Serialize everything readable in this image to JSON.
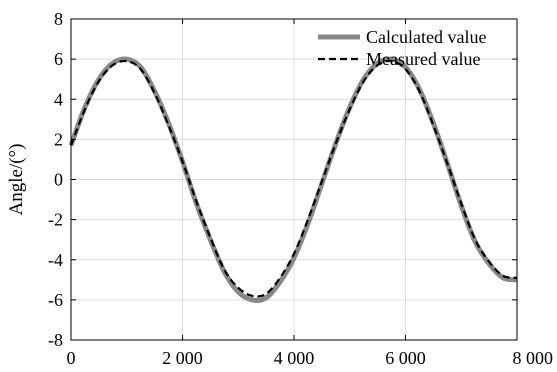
{
  "chart_data": {
    "type": "line",
    "title": "",
    "xlabel": "",
    "ylabel": "Angle/(°)",
    "xlim": [
      0,
      8000
    ],
    "ylim": [
      -8,
      8
    ],
    "x_ticks": [
      0,
      2000,
      4000,
      6000,
      8000
    ],
    "x_tick_labels": [
      "0",
      "2 000",
      "4 000",
      "6 000",
      "8 000"
    ],
    "y_ticks": [
      8,
      6,
      4,
      2,
      0,
      -2,
      -4,
      -6,
      -8
    ],
    "y_tick_labels": [
      "8",
      "6",
      "4",
      "2",
      "0",
      "-2",
      "-4",
      "-6",
      "-8"
    ],
    "grid": true,
    "legend_position": "top-right",
    "series": [
      {
        "name": "Calculated value",
        "style": "solid-thick",
        "color": "#888888",
        "x": [
          0,
          250,
          500,
          750,
          1000,
          1250,
          1500,
          1750,
          2000,
          2250,
          2500,
          2750,
          3000,
          3250,
          3500,
          3750,
          4000,
          4250,
          4500,
          4750,
          5000,
          5250,
          5500,
          5750,
          6000,
          6250,
          6500,
          6750,
          7000,
          7250,
          7500,
          7750,
          8000
        ],
        "values": [
          1.7,
          3.6,
          5.0,
          5.8,
          6.0,
          5.6,
          4.4,
          2.8,
          0.9,
          -1.2,
          -3.0,
          -4.6,
          -5.6,
          -6.0,
          -5.9,
          -5.1,
          -3.9,
          -2.2,
          -0.2,
          1.8,
          3.6,
          5.0,
          5.8,
          6.0,
          5.6,
          4.5,
          2.8,
          0.8,
          -1.3,
          -3.1,
          -4.2,
          -4.9,
          -5.0
        ]
      },
      {
        "name": "Measured value",
        "style": "dashed",
        "color": "#000000",
        "x": [
          0,
          250,
          500,
          750,
          1000,
          1250,
          1500,
          1750,
          2000,
          2250,
          2500,
          2750,
          3000,
          3250,
          3500,
          3750,
          4000,
          4250,
          4500,
          4750,
          5000,
          5250,
          5500,
          5750,
          6000,
          6250,
          6500,
          6750,
          7000,
          7250,
          7500,
          7750,
          8000
        ],
        "values": [
          1.7,
          3.5,
          4.9,
          5.7,
          5.9,
          5.5,
          4.3,
          2.7,
          0.9,
          -1.1,
          -2.9,
          -4.5,
          -5.4,
          -5.8,
          -5.7,
          -4.9,
          -3.7,
          -2.0,
          -0.1,
          1.8,
          3.5,
          4.9,
          5.7,
          5.9,
          5.5,
          4.4,
          2.7,
          0.8,
          -1.2,
          -3.0,
          -4.1,
          -4.8,
          -4.9
        ]
      }
    ]
  }
}
